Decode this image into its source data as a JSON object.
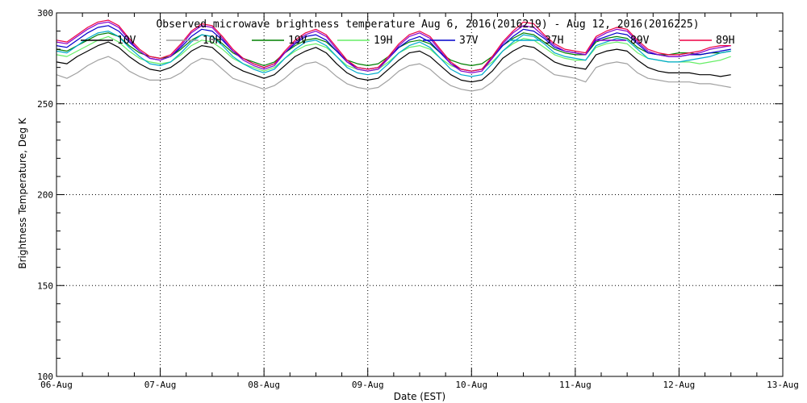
{
  "chart_data": {
    "type": "line",
    "title": "Observed microwave brightness temperature Aug  6, 2016(2016219) - Aug 12, 2016(2016225)",
    "xlabel": "Date (EST)",
    "ylabel": "Brightness Temperature, Deg K",
    "xlim": [
      0,
      7
    ],
    "ylim": [
      100,
      300
    ],
    "x_tick_values": [
      0,
      1,
      2,
      3,
      4,
      5,
      6,
      7
    ],
    "x_tick_labels": [
      "06-Aug",
      "07-Aug",
      "08-Aug",
      "09-Aug",
      "10-Aug",
      "11-Aug",
      "12-Aug",
      "13-Aug"
    ],
    "y_tick_values": [
      100,
      150,
      200,
      250,
      300
    ],
    "y_tick_labels": [
      "100",
      "150",
      "200",
      "250",
      "300"
    ],
    "grid": true,
    "legend_position": "top",
    "series": [
      {
        "name": "10V",
        "color": "#000000",
        "x": [
          0,
          0.1,
          0.2,
          0.3,
          0.4,
          0.5,
          0.6,
          0.7,
          0.8,
          0.9,
          1,
          1.1,
          1.2,
          1.3,
          1.4,
          1.5,
          1.6,
          1.7,
          1.8,
          1.9,
          2,
          2.1,
          2.2,
          2.3,
          2.4,
          2.5,
          2.6,
          2.7,
          2.8,
          2.9,
          3,
          3.1,
          3.2,
          3.3,
          3.4,
          3.5,
          3.6,
          3.7,
          3.8,
          3.9,
          4,
          4.1,
          4.2,
          4.3,
          4.4,
          4.5,
          4.6,
          4.7,
          4.8,
          4.9,
          5,
          5.1,
          5.2,
          5.3,
          5.4,
          5.5,
          5.6,
          5.7,
          5.8,
          5.9,
          6,
          6.1,
          6.2,
          6.3,
          6.4,
          6.5
        ],
        "values": [
          273,
          272,
          276,
          279,
          282,
          284,
          281,
          276,
          272,
          269,
          268,
          270,
          274,
          279,
          282,
          281,
          276,
          271,
          268,
          266,
          264,
          266,
          271,
          276,
          279,
          281,
          278,
          272,
          267,
          264,
          263,
          264,
          269,
          274,
          278,
          279,
          276,
          271,
          266,
          263,
          262,
          263,
          268,
          275,
          279,
          282,
          281,
          277,
          273,
          271,
          270,
          269,
          277,
          279,
          280,
          279,
          274,
          270,
          268,
          267,
          267,
          267,
          266,
          266,
          265,
          266
        ]
      },
      {
        "name": "10H",
        "color": "#a0a0a0",
        "x": [
          0,
          0.1,
          0.2,
          0.3,
          0.4,
          0.5,
          0.6,
          0.7,
          0.8,
          0.9,
          1,
          1.1,
          1.2,
          1.3,
          1.4,
          1.5,
          1.6,
          1.7,
          1.8,
          1.9,
          2,
          2.1,
          2.2,
          2.3,
          2.4,
          2.5,
          2.6,
          2.7,
          2.8,
          2.9,
          3,
          3.1,
          3.2,
          3.3,
          3.4,
          3.5,
          3.6,
          3.7,
          3.8,
          3.9,
          4,
          4.1,
          4.2,
          4.3,
          4.4,
          4.5,
          4.6,
          4.7,
          4.8,
          4.9,
          5,
          5.1,
          5.2,
          5.3,
          5.4,
          5.5,
          5.6,
          5.7,
          5.8,
          5.9,
          6,
          6.1,
          6.2,
          6.3,
          6.4,
          6.5
        ],
        "values": [
          266,
          264,
          267,
          271,
          274,
          276,
          273,
          268,
          265,
          263,
          263,
          264,
          267,
          272,
          275,
          274,
          269,
          264,
          262,
          260,
          258,
          260,
          264,
          269,
          272,
          273,
          270,
          265,
          261,
          259,
          258,
          259,
          263,
          268,
          271,
          272,
          269,
          264,
          260,
          258,
          257,
          258,
          262,
          268,
          272,
          275,
          274,
          270,
          266,
          265,
          264,
          262,
          270,
          272,
          273,
          272,
          267,
          264,
          263,
          262,
          262,
          262,
          261,
          261,
          260,
          259
        ]
      },
      {
        "name": "19V",
        "color": "#008000",
        "x": [
          0,
          0.1,
          0.2,
          0.3,
          0.4,
          0.5,
          0.6,
          0.7,
          0.8,
          0.9,
          1,
          1.1,
          1.2,
          1.3,
          1.4,
          1.5,
          1.6,
          1.7,
          1.8,
          1.9,
          2,
          2.1,
          2.2,
          2.3,
          2.4,
          2.5,
          2.6,
          2.7,
          2.8,
          2.9,
          3,
          3.1,
          3.2,
          3.3,
          3.4,
          3.5,
          3.6,
          3.7,
          3.8,
          3.9,
          4,
          4.1,
          4.2,
          4.3,
          4.4,
          4.5,
          4.6,
          4.7,
          4.8,
          4.9,
          5,
          5.1,
          5.2,
          5.3,
          5.4,
          5.5,
          5.6,
          5.7,
          5.8,
          5.9,
          6,
          6.1,
          6.2,
          6.3,
          6.4,
          6.5
        ],
        "values": [
          280,
          279,
          282,
          285,
          288,
          289,
          287,
          282,
          278,
          276,
          275,
          276,
          280,
          285,
          288,
          287,
          283,
          278,
          275,
          273,
          271,
          273,
          278,
          282,
          285,
          286,
          284,
          279,
          274,
          272,
          271,
          272,
          276,
          281,
          284,
          285,
          283,
          278,
          274,
          272,
          271,
          272,
          276,
          282,
          286,
          289,
          288,
          284,
          280,
          278,
          277,
          277,
          284,
          286,
          287,
          286,
          281,
          278,
          277,
          277,
          278,
          278,
          277,
          278,
          278,
          279
        ]
      },
      {
        "name": "19H",
        "color": "#66ee66",
        "x": [
          0,
          0.1,
          0.2,
          0.3,
          0.4,
          0.5,
          0.6,
          0.7,
          0.8,
          0.9,
          1,
          1.1,
          1.2,
          1.3,
          1.4,
          1.5,
          1.6,
          1.7,
          1.8,
          1.9,
          2,
          2.1,
          2.2,
          2.3,
          2.4,
          2.5,
          2.6,
          2.7,
          2.8,
          2.9,
          3,
          3.1,
          3.2,
          3.3,
          3.4,
          3.5,
          3.6,
          3.7,
          3.8,
          3.9,
          4,
          4.1,
          4.2,
          4.3,
          4.4,
          4.5,
          4.6,
          4.7,
          4.8,
          4.9,
          5,
          5.1,
          5.2,
          5.3,
          5.4,
          5.5,
          5.6,
          5.7,
          5.8,
          5.9,
          6,
          6.1,
          6.2,
          6.3,
          6.4,
          6.5
        ],
        "values": [
          277,
          276,
          279,
          282,
          285,
          287,
          284,
          279,
          275,
          273,
          272,
          273,
          277,
          282,
          285,
          284,
          280,
          275,
          272,
          270,
          268,
          270,
          275,
          279,
          282,
          283,
          281,
          276,
          271,
          269,
          268,
          269,
          273,
          278,
          281,
          282,
          280,
          275,
          271,
          269,
          268,
          269,
          273,
          279,
          283,
          286,
          285,
          281,
          277,
          275,
          274,
          274,
          281,
          283,
          284,
          283,
          278,
          275,
          274,
          273,
          273,
          273,
          272,
          273,
          274,
          276
        ]
      },
      {
        "name": "37V",
        "color": "#0000cc",
        "x": [
          0,
          0.1,
          0.2,
          0.3,
          0.4,
          0.5,
          0.6,
          0.7,
          0.8,
          0.9,
          1,
          1.1,
          1.2,
          1.3,
          1.4,
          1.5,
          1.6,
          1.7,
          1.8,
          1.9,
          2,
          2.1,
          2.2,
          2.3,
          2.4,
          2.5,
          2.6,
          2.7,
          2.8,
          2.9,
          3,
          3.1,
          3.2,
          3.3,
          3.4,
          3.5,
          3.6,
          3.7,
          3.8,
          3.9,
          4,
          4.1,
          4.2,
          4.3,
          4.4,
          4.5,
          4.6,
          4.7,
          4.8,
          4.9,
          5,
          5.1,
          5.2,
          5.3,
          5.4,
          5.5,
          5.6,
          5.7,
          5.8,
          5.9,
          6,
          6.1,
          6.2,
          6.3,
          6.4,
          6.5
        ],
        "values": [
          282,
          281,
          285,
          289,
          292,
          293,
          290,
          284,
          279,
          275,
          274,
          276,
          281,
          287,
          291,
          290,
          285,
          279,
          275,
          272,
          270,
          272,
          278,
          283,
          287,
          288,
          285,
          279,
          273,
          270,
          269,
          270,
          275,
          281,
          285,
          287,
          284,
          278,
          272,
          269,
          268,
          269,
          275,
          282,
          287,
          291,
          290,
          286,
          281,
          279,
          278,
          277,
          285,
          287,
          289,
          288,
          283,
          278,
          277,
          276,
          276,
          277,
          277,
          278,
          279,
          280
        ]
      },
      {
        "name": "37H",
        "color": "#00aacc",
        "x": [
          0,
          0.1,
          0.2,
          0.3,
          0.4,
          0.5,
          0.6,
          0.7,
          0.8,
          0.9,
          1,
          1.1,
          1.2,
          1.3,
          1.4,
          1.5,
          1.6,
          1.7,
          1.8,
          1.9,
          2,
          2.1,
          2.2,
          2.3,
          2.4,
          2.5,
          2.6,
          2.7,
          2.8,
          2.9,
          3,
          3.1,
          3.2,
          3.3,
          3.4,
          3.5,
          3.6,
          3.7,
          3.8,
          3.9,
          4,
          4.1,
          4.2,
          4.3,
          4.4,
          4.5,
          4.6,
          4.7,
          4.8,
          4.9,
          5,
          5.1,
          5.2,
          5.3,
          5.4,
          5.5,
          5.6,
          5.7,
          5.8,
          5.9,
          6,
          6.1,
          6.2,
          6.3,
          6.4,
          6.5
        ],
        "values": [
          279,
          278,
          282,
          286,
          289,
          290,
          287,
          281,
          276,
          272,
          271,
          273,
          278,
          284,
          288,
          287,
          282,
          276,
          272,
          269,
          267,
          269,
          275,
          280,
          284,
          285,
          282,
          276,
          270,
          267,
          266,
          267,
          272,
          278,
          282,
          284,
          281,
          275,
          269,
          266,
          265,
          266,
          272,
          279,
          284,
          288,
          287,
          283,
          278,
          276,
          275,
          274,
          282,
          284,
          286,
          285,
          280,
          275,
          274,
          273,
          273,
          274,
          275,
          276,
          278,
          279
        ]
      },
      {
        "name": "89V",
        "color": "#8800cc",
        "x": [
          0,
          0.1,
          0.2,
          0.3,
          0.4,
          0.5,
          0.6,
          0.7,
          0.8,
          0.9,
          1,
          1.1,
          1.2,
          1.3,
          1.4,
          1.5,
          1.6,
          1.7,
          1.8,
          1.9,
          2,
          2.1,
          2.2,
          2.3,
          2.4,
          2.5,
          2.6,
          2.7,
          2.8,
          2.9,
          3,
          3.1,
          3.2,
          3.3,
          3.4,
          3.5,
          3.6,
          3.7,
          3.8,
          3.9,
          4,
          4.1,
          4.2,
          4.3,
          4.4,
          4.5,
          4.6,
          4.7,
          4.8,
          4.9,
          5,
          5.1,
          5.2,
          5.3,
          5.4,
          5.5,
          5.6,
          5.7,
          5.8,
          5.9,
          6,
          6.1,
          6.2,
          6.3,
          6.4,
          6.5
        ],
        "values": [
          284,
          283,
          287,
          291,
          294,
          295,
          292,
          285,
          279,
          275,
          274,
          276,
          282,
          289,
          293,
          292,
          286,
          279,
          274,
          271,
          269,
          271,
          278,
          284,
          288,
          290,
          287,
          280,
          273,
          269,
          268,
          269,
          275,
          282,
          287,
          289,
          286,
          279,
          272,
          268,
          267,
          268,
          275,
          283,
          289,
          293,
          292,
          287,
          282,
          279,
          278,
          277,
          286,
          289,
          291,
          290,
          284,
          279,
          277,
          276,
          276,
          277,
          278,
          280,
          281,
          282
        ]
      },
      {
        "name": "89H",
        "color": "#ee0044",
        "x": [
          0,
          0.1,
          0.2,
          0.3,
          0.4,
          0.5,
          0.6,
          0.7,
          0.8,
          0.9,
          1,
          1.1,
          1.2,
          1.3,
          1.4,
          1.5,
          1.6,
          1.7,
          1.8,
          1.9,
          2,
          2.1,
          2.2,
          2.3,
          2.4,
          2.5,
          2.6,
          2.7,
          2.8,
          2.9,
          3,
          3.1,
          3.2,
          3.3,
          3.4,
          3.5,
          3.6,
          3.7,
          3.8,
          3.9,
          4,
          4.1,
          4.2,
          4.3,
          4.4,
          4.5,
          4.6,
          4.7,
          4.8,
          4.9,
          5,
          5.1,
          5.2,
          5.3,
          5.4,
          5.5,
          5.6,
          5.7,
          5.8,
          5.9,
          6,
          6.1,
          6.2,
          6.3,
          6.4,
          6.5
        ],
        "values": [
          285,
          284,
          288,
          292,
          295,
          296,
          293,
          286,
          280,
          276,
          275,
          277,
          283,
          290,
          294,
          293,
          287,
          280,
          275,
          272,
          270,
          272,
          279,
          285,
          289,
          291,
          288,
          281,
          274,
          270,
          269,
          270,
          276,
          283,
          288,
          290,
          287,
          280,
          273,
          269,
          268,
          269,
          276,
          284,
          290,
          295,
          294,
          288,
          283,
          280,
          279,
          278,
          287,
          290,
          292,
          291,
          285,
          280,
          278,
          277,
          277,
          278,
          279,
          281,
          282,
          282
        ]
      }
    ]
  }
}
